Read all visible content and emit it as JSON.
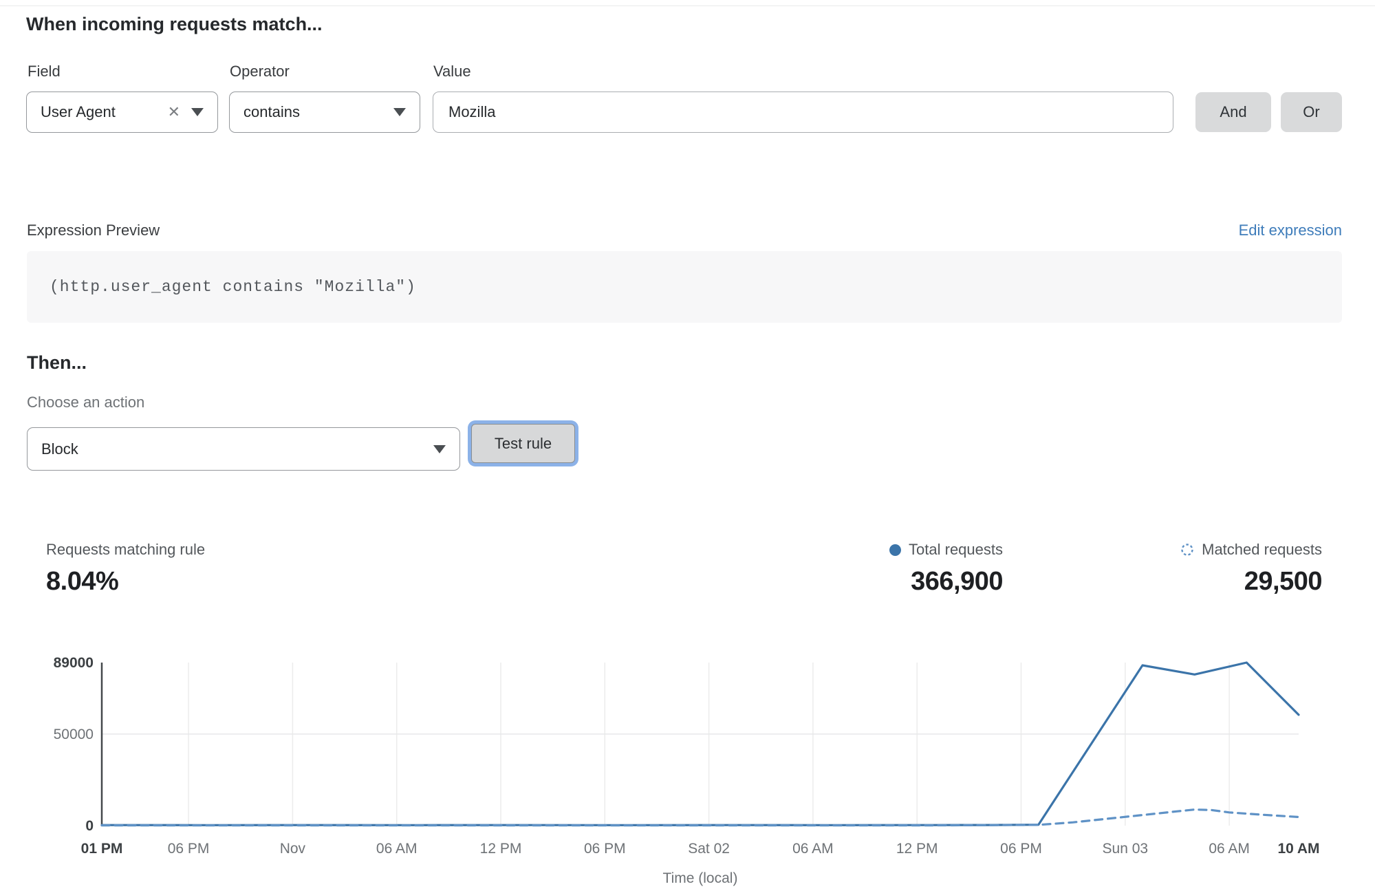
{
  "rule_builder": {
    "heading": "When incoming requests match...",
    "field": {
      "label": "Field",
      "value": "User Agent"
    },
    "operator": {
      "label": "Operator",
      "value": "contains"
    },
    "value_field": {
      "label": "Value",
      "value": "Mozilla"
    },
    "and_label": "And",
    "or_label": "Or"
  },
  "expression": {
    "label": "Expression Preview",
    "edit_link": "Edit expression",
    "code": "(http.user_agent contains \"Mozilla\")"
  },
  "action": {
    "heading": "Then...",
    "choose_label": "Choose an action",
    "value": "Block",
    "test_label": "Test rule"
  },
  "stats": {
    "match_rate": {
      "label": "Requests matching rule",
      "value": "8.04%"
    },
    "total": {
      "label": "Total requests",
      "value": "366,900"
    },
    "matched": {
      "label": "Matched requests",
      "value": "29,500"
    }
  },
  "icons": {
    "clear": "✕"
  },
  "colors": {
    "total_line": "#3b74a9",
    "matched_line": "#5f92c6",
    "link_blue": "#3e7cba",
    "gridline": "#ececec",
    "axis": "#44484b",
    "tick_bold": "#3c4043",
    "tick_regular": "#6e7276"
  },
  "chart_data": {
    "type": "line",
    "title": "",
    "xlabel": "Time (local)",
    "ylabel": "",
    "xlim_hours": [
      0,
      69
    ],
    "ylim": [
      0,
      89000
    ],
    "grid": true,
    "legend_position": "top-right",
    "x_ticks": [
      {
        "hour": 0,
        "label": "01 PM",
        "bold": true
      },
      {
        "hour": 5,
        "label": "06 PM",
        "bold": false
      },
      {
        "hour": 11,
        "label": "Nov",
        "bold": false
      },
      {
        "hour": 17,
        "label": "06 AM",
        "bold": false
      },
      {
        "hour": 23,
        "label": "12 PM",
        "bold": false
      },
      {
        "hour": 29,
        "label": "06 PM",
        "bold": false
      },
      {
        "hour": 35,
        "label": "Sat 02",
        "bold": false
      },
      {
        "hour": 41,
        "label": "06 AM",
        "bold": false
      },
      {
        "hour": 47,
        "label": "12 PM",
        "bold": false
      },
      {
        "hour": 53,
        "label": "06 PM",
        "bold": false
      },
      {
        "hour": 59,
        "label": "Sun 03",
        "bold": false
      },
      {
        "hour": 65,
        "label": "06 AM",
        "bold": false
      },
      {
        "hour": 69,
        "label": "10 AM",
        "bold": true
      }
    ],
    "y_ticks": [
      {
        "value": 0,
        "label": "0",
        "bold": true
      },
      {
        "value": 50000,
        "label": "50000",
        "bold": false
      },
      {
        "value": 89000,
        "label": "89000",
        "bold": true
      }
    ],
    "series": [
      {
        "name": "Total requests",
        "style": "solid",
        "color": "#3b74a9",
        "points": [
          [
            0,
            300
          ],
          [
            6,
            250
          ],
          [
            12,
            300
          ],
          [
            18,
            250
          ],
          [
            24,
            300
          ],
          [
            30,
            250
          ],
          [
            36,
            300
          ],
          [
            42,
            250
          ],
          [
            48,
            300
          ],
          [
            51,
            350
          ],
          [
            54,
            500
          ],
          [
            60,
            87500
          ],
          [
            63,
            82500
          ],
          [
            66,
            89000
          ],
          [
            69,
            60500
          ]
        ]
      },
      {
        "name": "Matched requests",
        "style": "dashed",
        "color": "#5f92c6",
        "points": [
          [
            0,
            150
          ],
          [
            6,
            120
          ],
          [
            12,
            150
          ],
          [
            18,
            120
          ],
          [
            24,
            150
          ],
          [
            30,
            120
          ],
          [
            36,
            150
          ],
          [
            42,
            120
          ],
          [
            48,
            150
          ],
          [
            54,
            400
          ],
          [
            56,
            1800
          ],
          [
            58,
            3800
          ],
          [
            60,
            5800
          ],
          [
            62,
            7800
          ],
          [
            63,
            8800
          ],
          [
            64,
            8500
          ],
          [
            65,
            7200
          ],
          [
            67,
            5900
          ],
          [
            69,
            4700
          ]
        ]
      }
    ]
  }
}
